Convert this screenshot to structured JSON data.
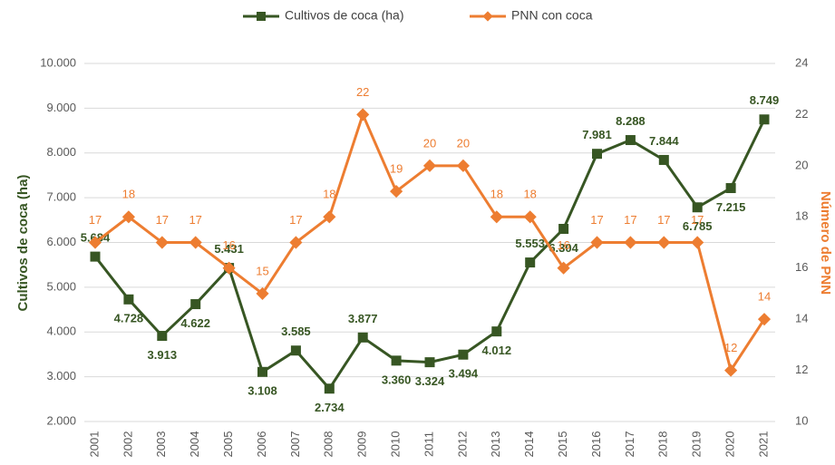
{
  "chart_data": {
    "type": "line",
    "categories": [
      "2001",
      "2002",
      "2003",
      "2004",
      "2005",
      "2006",
      "2007",
      "2008",
      "2009",
      "2010",
      "2011",
      "2012",
      "2013",
      "2014",
      "2015",
      "2016",
      "2017",
      "2018",
      "2019",
      "2020",
      "2021"
    ],
    "series": [
      {
        "name": "Cultivos de coca (ha)",
        "color": "#375623",
        "axis": "y",
        "values": [
          5684,
          4728,
          3913,
          4622,
          5431,
          3108,
          3585,
          2734,
          3877,
          3360,
          3324,
          3494,
          4012,
          5553,
          6304,
          7981,
          8288,
          7844,
          6785,
          7215,
          8749
        ],
        "value_labels": [
          "5.684",
          "4.728",
          "3.913",
          "4.622",
          "5.431",
          "3.108",
          "3.585",
          "2.734",
          "3.877",
          "3.360",
          "3.324",
          "3.494",
          "4.012",
          "5.553",
          "6.304",
          "7.981",
          "8.288",
          "7.844",
          "6.785",
          "7.215",
          "8.749"
        ]
      },
      {
        "name": "PNN con coca",
        "color": "#ED7D31",
        "axis": "y2",
        "values": [
          17,
          18,
          17,
          17,
          16,
          15,
          17,
          18,
          22,
          19,
          20,
          20,
          18,
          18,
          16,
          17,
          17,
          17,
          17,
          12,
          14
        ]
      }
    ],
    "ylabel": "Cultivos de coca (ha)",
    "y2label": "Número de PNN",
    "ylim": [
      2000,
      10000
    ],
    "yticks": [
      {
        "value": 2000,
        "label": "2.000"
      },
      {
        "value": 3000,
        "label": "3.000"
      },
      {
        "value": 4000,
        "label": "4.000"
      },
      {
        "value": 5000,
        "label": "5.000"
      },
      {
        "value": 6000,
        "label": "6.000"
      },
      {
        "value": 7000,
        "label": "7.000"
      },
      {
        "value": 8000,
        "label": "8.000"
      },
      {
        "value": 9000,
        "label": "9.000"
      },
      {
        "value": 10000,
        "label": "10.000"
      }
    ],
    "y2lim": [
      10,
      24
    ],
    "y2ticks": [
      10,
      12,
      14,
      16,
      18,
      20,
      22,
      24
    ],
    "grid": true,
    "legend": "top"
  }
}
